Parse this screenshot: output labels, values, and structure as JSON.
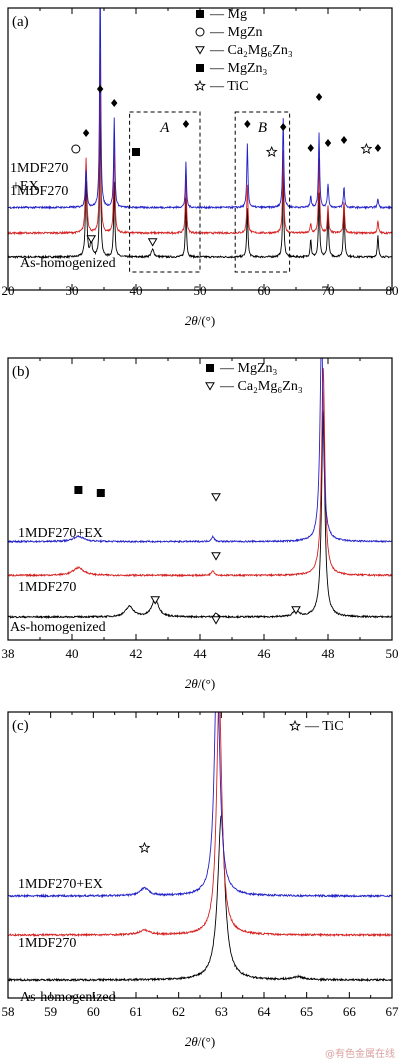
{
  "watermark": "@有色金属在线",
  "chart_data": [
    {
      "type": "line",
      "panel_label": "(a)",
      "xlabel_main": "2θ",
      "xlabel_unit": "/(°)",
      "xlim": [
        20,
        80
      ],
      "xticks": [
        20,
        30,
        40,
        50,
        60,
        70,
        80
      ],
      "series": [
        {
          "name": "As-homogenized",
          "color": "#000000",
          "baseline": 0.0,
          "peaks": [
            [
              32.2,
              0.5,
              0.28
            ],
            [
              33.0,
              0.12,
              0.3
            ],
            [
              34.4,
              1.0,
              0.2
            ],
            [
              36.6,
              0.5,
              0.22
            ],
            [
              42.6,
              0.05,
              0.5
            ],
            [
              47.8,
              0.4,
              0.2
            ],
            [
              57.4,
              0.32,
              0.22
            ],
            [
              63.0,
              0.55,
              0.22
            ],
            [
              67.3,
              0.12,
              0.22
            ],
            [
              68.6,
              0.42,
              0.22
            ],
            [
              70.0,
              0.32,
              0.22
            ],
            [
              72.5,
              0.36,
              0.22
            ],
            [
              77.8,
              0.14,
              0.22
            ]
          ]
        },
        {
          "name": "1MDF270",
          "color": "#d62020",
          "baseline": 0.16,
          "peaks": [
            [
              32.2,
              0.5,
              0.28
            ],
            [
              34.4,
              1.2,
              0.2
            ],
            [
              36.6,
              0.6,
              0.22
            ],
            [
              47.8,
              0.42,
              0.2
            ],
            [
              57.4,
              0.32,
              0.22
            ],
            [
              63.0,
              0.55,
              0.22
            ],
            [
              67.3,
              0.06,
              0.22
            ],
            [
              68.6,
              0.5,
              0.22
            ],
            [
              70.0,
              0.18,
              0.22
            ],
            [
              72.5,
              0.22,
              0.22
            ],
            [
              77.8,
              0.08,
              0.22
            ]
          ]
        },
        {
          "name": "1MDF270 +EX",
          "color": "#2020c8",
          "baseline": 0.33,
          "peaks": [
            [
              32.2,
              0.25,
              0.28
            ],
            [
              34.4,
              1.6,
              0.2
            ],
            [
              36.6,
              0.6,
              0.22
            ],
            [
              47.8,
              0.3,
              0.2
            ],
            [
              57.4,
              0.42,
              0.22
            ],
            [
              63.0,
              0.6,
              0.22
            ],
            [
              67.3,
              0.08,
              0.22
            ],
            [
              68.6,
              0.5,
              0.22
            ],
            [
              70.0,
              0.16,
              0.22
            ],
            [
              72.5,
              0.14,
              0.22
            ],
            [
              77.8,
              0.06,
              0.22
            ]
          ]
        }
      ],
      "legend": [
        {
          "marker": "filled-square",
          "label": "Mg"
        },
        {
          "marker": "open-circle",
          "label": "MgZn"
        },
        {
          "marker": "open-triangle-down",
          "label": "Ca₂Mg₆Zn₃"
        },
        {
          "marker": "filled-square",
          "label": "MgZn₃"
        },
        {
          "marker": "open-star",
          "label": "TiC"
        }
      ],
      "regions": [
        {
          "label": "A",
          "x": [
            39,
            50
          ]
        },
        {
          "label": "B",
          "x": [
            55.5,
            64
          ]
        }
      ],
      "markers": [
        {
          "type": "filled-diamond",
          "x": 32.2
        },
        {
          "type": "filled-diamond",
          "x": 34.4
        },
        {
          "type": "filled-diamond",
          "x": 36.6
        },
        {
          "type": "filled-diamond",
          "x": 47.8
        },
        {
          "type": "filled-diamond",
          "x": 57.4
        },
        {
          "type": "filled-diamond",
          "x": 63.0
        },
        {
          "type": "filled-diamond",
          "x": 67.3
        },
        {
          "type": "filled-diamond",
          "x": 68.6
        },
        {
          "type": "filled-diamond",
          "x": 70.0
        },
        {
          "type": "filled-diamond",
          "x": 72.5
        },
        {
          "type": "filled-diamond",
          "x": 77.8
        },
        {
          "type": "open-circle",
          "x": 30.6
        },
        {
          "type": "filled-square",
          "x": 40.0
        },
        {
          "type": "open-star",
          "x": 61.2
        },
        {
          "type": "open-star",
          "x": 76.0
        },
        {
          "type": "open-triangle-down",
          "x": 33.0
        },
        {
          "type": "open-triangle-down",
          "x": 42.6
        }
      ]
    },
    {
      "type": "line",
      "panel_label": "(b)",
      "xlabel_main": "2θ",
      "xlabel_unit": "/(°)",
      "xlim": [
        38,
        50
      ],
      "xticks": [
        38,
        40,
        42,
        44,
        46,
        48,
        50
      ],
      "series": [
        {
          "name": "As-homogenized",
          "color": "#000000",
          "baseline": 0.0,
          "peaks": [
            [
              41.8,
              0.08,
              0.3
            ],
            [
              42.6,
              0.14,
              0.25
            ],
            [
              44.5,
              0.03,
              0.1
            ],
            [
              47.0,
              0.05,
              0.2
            ],
            [
              47.85,
              1.6,
              0.12
            ]
          ]
        },
        {
          "name": "1MDF270",
          "color": "#d62020",
          "baseline": 0.32,
          "peaks": [
            [
              40.2,
              0.06,
              0.4
            ],
            [
              44.4,
              0.04,
              0.1
            ],
            [
              47.85,
              1.6,
              0.12
            ]
          ]
        },
        {
          "name": "1MDF270+EX",
          "color": "#2020c8",
          "baseline": 0.58,
          "peaks": [
            [
              40.2,
              0.04,
              0.4
            ],
            [
              44.4,
              0.04,
              0.1
            ],
            [
              47.8,
              1.6,
              0.12
            ]
          ]
        }
      ],
      "legend": [
        {
          "marker": "filled-square",
          "label": "MgZn₃"
        },
        {
          "marker": "open-triangle-down",
          "label": "Ca₂Mg₆Zn₃"
        }
      ],
      "markers": [
        {
          "type": "filled-square",
          "x": 40.2
        },
        {
          "type": "filled-square",
          "x": 40.9
        },
        {
          "type": "open-triangle-down",
          "x": 44.5
        },
        {
          "type": "open-triangle-down",
          "x": 44.5
        },
        {
          "type": "open-triangle-down",
          "x": 42.6
        },
        {
          "type": "open-triangle-down",
          "x": 44.5
        },
        {
          "type": "open-triangle-down",
          "x": 47.0
        }
      ]
    },
    {
      "type": "line",
      "panel_label": "(c)",
      "xlabel_main": "2θ",
      "xlabel_unit": "/(°)",
      "xlim": [
        58,
        67
      ],
      "xticks": [
        58,
        59,
        60,
        61,
        62,
        63,
        64,
        65,
        66,
        67
      ],
      "series": [
        {
          "name": "As-homogenized",
          "color": "#000000",
          "baseline": 0.0,
          "peaks": [
            [
              63.0,
              1.1,
              0.2
            ],
            [
              64.8,
              0.02,
              0.3
            ]
          ]
        },
        {
          "name": "1MDF270",
          "color": "#d62020",
          "baseline": 0.3,
          "peaks": [
            [
              61.2,
              0.03,
              0.3
            ],
            [
              62.95,
              1.6,
              0.15
            ]
          ]
        },
        {
          "name": "1MDF270+EX",
          "color": "#2020c8",
          "baseline": 0.56,
          "peaks": [
            [
              61.2,
              0.05,
              0.25
            ],
            [
              62.9,
              1.6,
              0.15
            ]
          ]
        }
      ],
      "legend": [
        {
          "marker": "open-star",
          "label": "TiC"
        }
      ],
      "markers": [
        {
          "type": "open-star",
          "x": 61.2
        }
      ]
    }
  ]
}
